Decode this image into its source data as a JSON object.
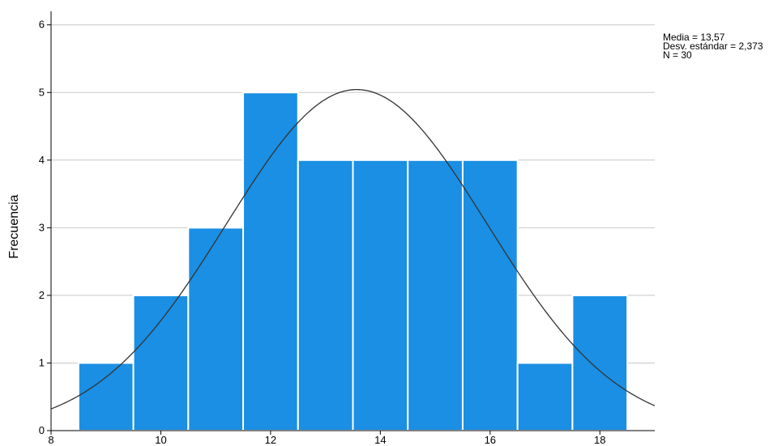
{
  "chart_data": {
    "type": "bar",
    "subtype": "histogram",
    "xlabel": "",
    "ylabel": "Frecuencia",
    "xlim": [
      8,
      19
    ],
    "ylim": [
      0,
      6.2
    ],
    "x_ticks": [
      "8",
      "10",
      "12",
      "14",
      "16",
      "18"
    ],
    "y_ticks": [
      "0",
      "1",
      "2",
      "3",
      "4",
      "5",
      "6"
    ],
    "bins": [
      {
        "from": 8.5,
        "to": 9.5,
        "count": 1
      },
      {
        "from": 9.5,
        "to": 10.5,
        "count": 2
      },
      {
        "from": 10.5,
        "to": 11.5,
        "count": 3
      },
      {
        "from": 11.5,
        "to": 12.5,
        "count": 5
      },
      {
        "from": 12.5,
        "to": 13.5,
        "count": 4
      },
      {
        "from": 13.5,
        "to": 14.5,
        "count": 4
      },
      {
        "from": 14.5,
        "to": 15.5,
        "count": 4
      },
      {
        "from": 15.5,
        "to": 16.5,
        "count": 4
      },
      {
        "from": 16.5,
        "to": 17.5,
        "count": 1
      },
      {
        "from": 17.5,
        "to": 18.5,
        "count": 2
      }
    ],
    "normal_curve": {
      "mean": 13.57,
      "sd": 2.373,
      "n": 30,
      "bin_width": 1
    },
    "grid": true,
    "colors": {
      "bar": "#1a8fe3",
      "bar_edge": "#ffffff",
      "curve": "#333333",
      "grid": "#c8c8c8",
      "axis": "#000000"
    }
  },
  "stats": {
    "mean_label": "Media = 13,57",
    "sd_label": "Desv. estándar = 2,373",
    "n_label": "N = 30"
  }
}
